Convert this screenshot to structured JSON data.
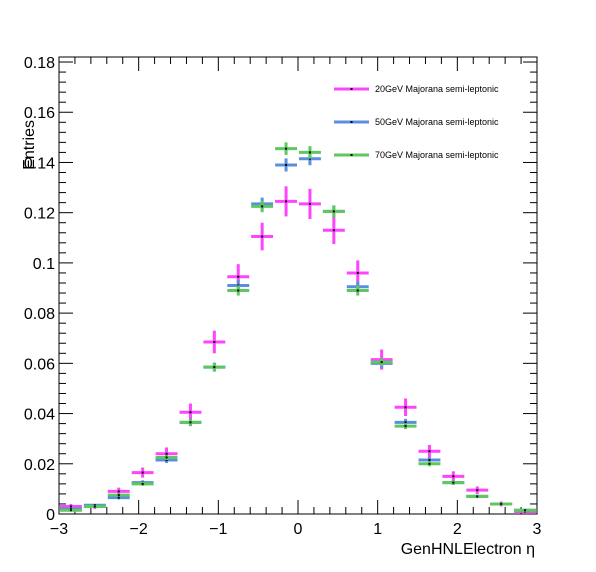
{
  "chart_data": {
    "type": "scatter",
    "title": "",
    "xlabel": "GenHNLElectron  η",
    "ylabel": "Entries",
    "xlim": [
      -3,
      3
    ],
    "ylim": [
      0,
      0.182
    ],
    "xticks": [
      -3,
      -2,
      -1,
      0,
      1,
      2,
      3
    ],
    "xtick_labels": [
      "−3",
      "−2",
      "−1",
      "0",
      "1",
      "2",
      "3"
    ],
    "yticks": [
      0,
      0.02,
      0.04,
      0.06,
      0.08,
      0.1,
      0.12,
      0.14,
      0.16,
      0.18
    ],
    "ytick_labels": [
      "0",
      "0.02",
      "0.04",
      "0.06",
      "0.08",
      "0.1",
      "0.12",
      "0.14",
      "0.16",
      "0.18"
    ],
    "bin_width": 0.3,
    "x": [
      -2.85,
      -2.55,
      -2.25,
      -1.95,
      -1.65,
      -1.35,
      -1.05,
      -0.75,
      -0.45,
      -0.15,
      0.15,
      0.45,
      0.75,
      1.05,
      1.35,
      1.65,
      1.95,
      2.25,
      2.55,
      2.85
    ],
    "legend_position": "top-right",
    "grid": false,
    "series": [
      {
        "name": "20GeV Majorana semi-leptonic",
        "color": "#ff44ff",
        "values": [
          0.003,
          0.003,
          0.009,
          0.0165,
          0.024,
          0.0405,
          0.0685,
          0.0945,
          0.1105,
          0.1245,
          0.1235,
          0.113,
          0.096,
          0.0615,
          0.0425,
          0.025,
          0.015,
          0.0095,
          0.004,
          0.001
        ],
        "errors": [
          0.001,
          0.001,
          0.0015,
          0.002,
          0.0025,
          0.0035,
          0.0045,
          0.005,
          0.0055,
          0.006,
          0.006,
          0.0055,
          0.005,
          0.004,
          0.0035,
          0.0025,
          0.002,
          0.0015,
          0.001,
          0.0005
        ]
      },
      {
        "name": "50GeV Majorana semi-leptonic",
        "color": "#5a8fe0",
        "values": [
          0.002,
          0.0035,
          0.0065,
          0.0125,
          0.0215,
          0.0365,
          0.0585,
          0.091,
          0.1235,
          0.139,
          0.1415,
          0.1205,
          0.0905,
          0.06,
          0.0365,
          0.0215,
          0.0125,
          0.007,
          0.004,
          0.0015
        ],
        "errors": [
          0.0004,
          0.0005,
          0.0007,
          0.0009,
          0.0012,
          0.0015,
          0.0018,
          0.0022,
          0.0025,
          0.0026,
          0.0026,
          0.0024,
          0.0021,
          0.0017,
          0.0014,
          0.0011,
          0.0009,
          0.0007,
          0.0005,
          0.0003
        ]
      },
      {
        "name": "70GeV Majorana semi-leptonic",
        "color": "#5ec85e",
        "values": [
          0.0015,
          0.003,
          0.0075,
          0.012,
          0.0225,
          0.0365,
          0.0585,
          0.089,
          0.1225,
          0.1455,
          0.144,
          0.1205,
          0.089,
          0.0605,
          0.035,
          0.02,
          0.0125,
          0.007,
          0.004,
          0.0015
        ],
        "errors": [
          0.0003,
          0.0004,
          0.0006,
          0.0008,
          0.001,
          0.0013,
          0.0016,
          0.002,
          0.0023,
          0.0025,
          0.0025,
          0.0023,
          0.002,
          0.0016,
          0.0012,
          0.001,
          0.0008,
          0.0006,
          0.0004,
          0.0003
        ]
      }
    ]
  }
}
